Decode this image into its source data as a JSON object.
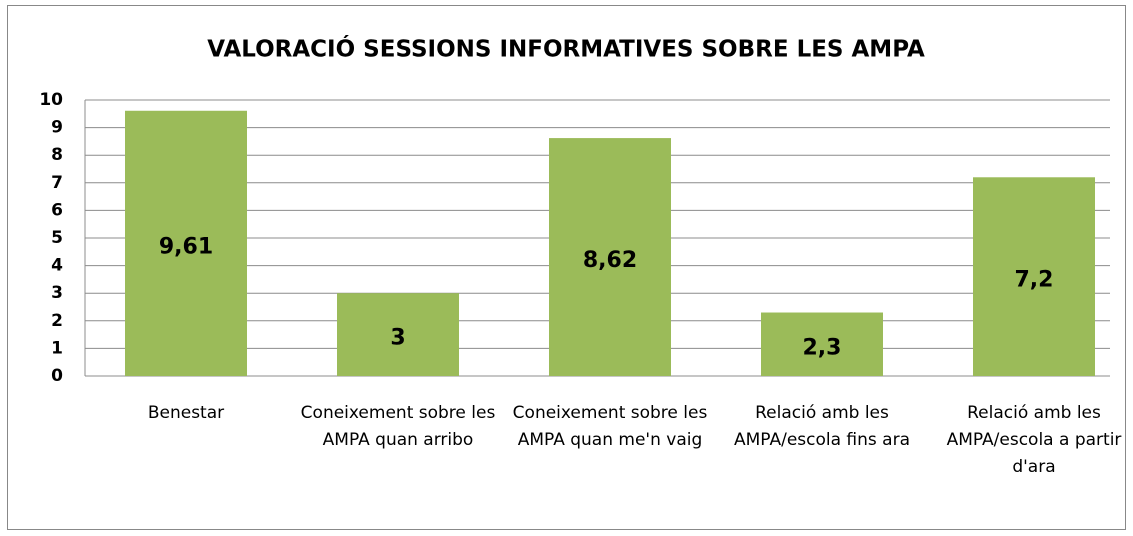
{
  "chart_data": {
    "type": "bar",
    "title": "VALORACIÓ SESSIONS INFORMATIVES SOBRE LES AMPA",
    "categories": [
      "Benestar",
      "Coneixement sobre les AMPA quan arribo",
      "Coneixement sobre les AMPA quan me'n vaig",
      "Relació amb les AMPA/escola fins ara",
      "Relació amb les AMPA/escola a partir d'ara"
    ],
    "values": [
      9.61,
      3,
      8.62,
      2.3,
      7.2
    ],
    "value_labels": [
      "9,61",
      "3",
      "8,62",
      "2,3",
      "7,2"
    ],
    "color": "#9bbb59",
    "ylim": [
      0,
      10
    ],
    "yticks": [
      0,
      1,
      2,
      3,
      4,
      5,
      6,
      7,
      8,
      9,
      10
    ],
    "grid": true
  }
}
